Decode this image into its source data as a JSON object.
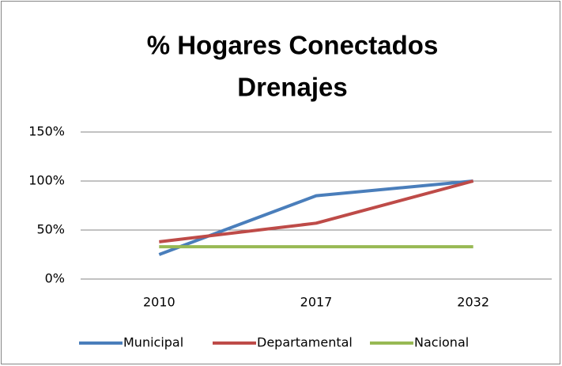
{
  "chart_data": {
    "type": "line",
    "title": [
      "% Hogares Conectados",
      "Drenajes"
    ],
    "categories": [
      "2010",
      "2017",
      "2032"
    ],
    "series": [
      {
        "name": "Municipal",
        "color": "#4a7ebb",
        "values": [
          25,
          85,
          100
        ]
      },
      {
        "name": "Departamental",
        "color": "#be4b48",
        "values": [
          38,
          57,
          100
        ]
      },
      {
        "name": "Nacional",
        "color": "#98b954",
        "values": [
          33,
          33,
          33
        ]
      }
    ],
    "ylim": [
      0,
      150
    ],
    "yticks": [
      {
        "value": 0,
        "label": "0%"
      },
      {
        "value": 50,
        "label": "50%"
      },
      {
        "value": 100,
        "label": "100%"
      },
      {
        "value": 150,
        "label": "150%"
      }
    ],
    "grid": true,
    "legend": "bottom"
  }
}
